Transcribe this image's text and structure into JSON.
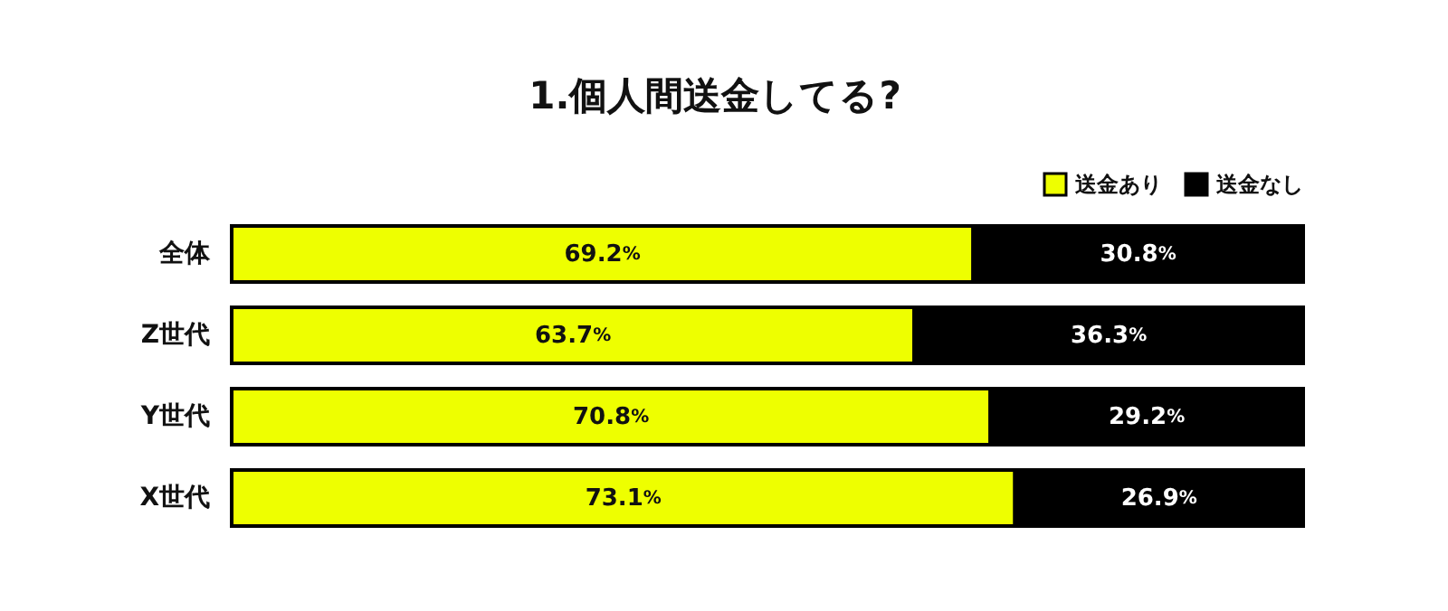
{
  "chart_data": {
    "type": "bar",
    "title": "1.個人間送金してる?",
    "orientation": "horizontal",
    "stacked": true,
    "xlim": [
      0,
      100
    ],
    "legend": "top right",
    "categories": [
      "全体",
      "Z世代",
      "Y世代",
      "X世代"
    ],
    "series": [
      {
        "name": "送金あり",
        "color": "#eeff00",
        "values": [
          69.2,
          63.7,
          70.8,
          73.1
        ],
        "value_labels": [
          "69.2%",
          "63.7%",
          "70.8%",
          "73.1%"
        ]
      },
      {
        "name": "送金なし",
        "color": "#000000",
        "values": [
          30.8,
          36.3,
          29.2,
          26.9
        ],
        "value_labels": [
          "30.8%",
          "36.3%",
          "29.2%",
          "26.9%"
        ]
      }
    ]
  }
}
